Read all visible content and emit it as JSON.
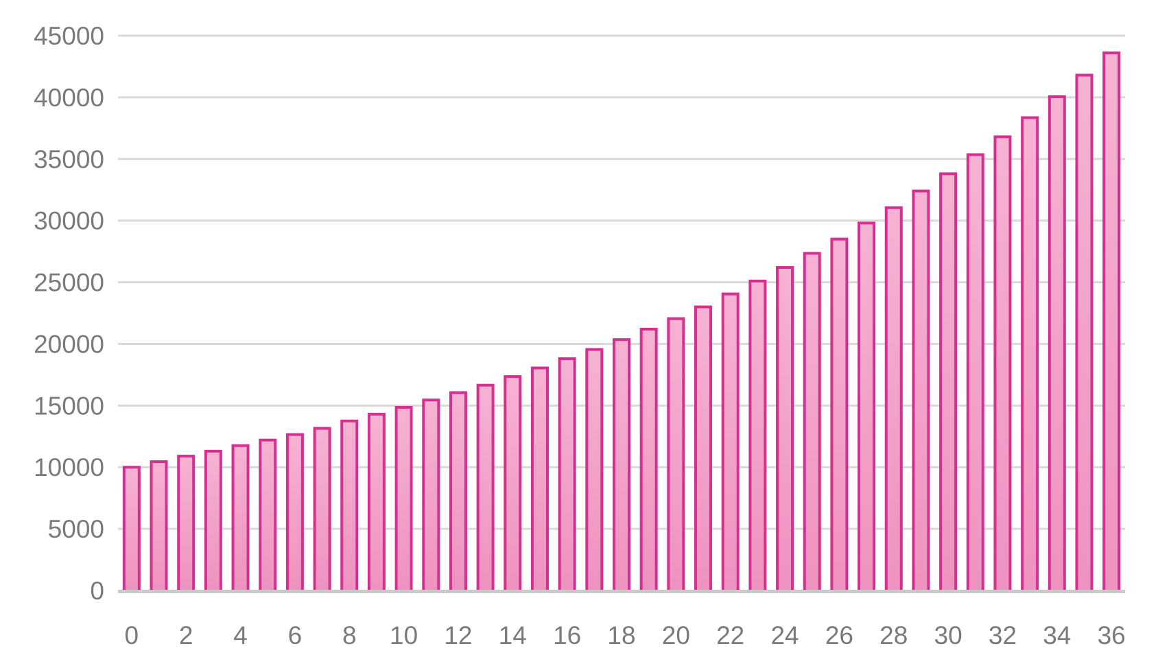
{
  "chart_data": {
    "type": "bar",
    "title": "",
    "xlabel": "",
    "ylabel": "",
    "x": [
      0,
      1,
      2,
      3,
      4,
      5,
      6,
      7,
      8,
      9,
      10,
      11,
      12,
      13,
      14,
      15,
      16,
      17,
      18,
      19,
      20,
      21,
      22,
      23,
      24,
      25,
      26,
      27,
      28,
      29,
      30,
      31,
      32,
      33,
      34,
      35,
      36
    ],
    "values": [
      10000,
      10450,
      10900,
      11300,
      11750,
      12200,
      12650,
      13150,
      13750,
      14300,
      14850,
      15450,
      16050,
      16650,
      17350,
      18050,
      18800,
      19550,
      20350,
      21200,
      22050,
      23000,
      24050,
      25100,
      26200,
      27350,
      28500,
      29800,
      31050,
      32400,
      33800,
      35350,
      36800,
      38350,
      40050,
      41800,
      43600
    ],
    "x_tick_step": 2,
    "y_ticks": [
      0,
      5000,
      10000,
      15000,
      20000,
      25000,
      30000,
      35000,
      40000,
      45000
    ],
    "ylim": [
      0,
      45000
    ],
    "grid": "horizontal",
    "legend": false
  },
  "style": {
    "background": "#FFFFFF",
    "bar_border": "#D5308F",
    "bar_fill_top": "#F6B2D3",
    "bar_fill_bottom": "#EE92BF",
    "gridline": "#D9D9D9",
    "axis_line": "#C9C9C9",
    "tick_label": "#7A7A7A"
  }
}
